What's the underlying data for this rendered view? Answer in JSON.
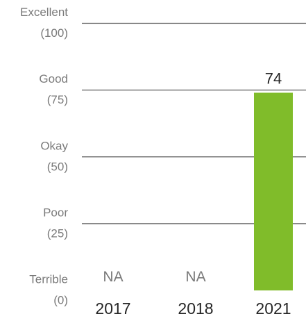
{
  "chart_data": {
    "type": "bar",
    "categories": [
      "2017",
      "2018",
      "2021"
    ],
    "values": [
      null,
      null,
      74
    ],
    "value_labels": [
      "NA",
      "NA",
      "74"
    ],
    "ylim": [
      0,
      100
    ],
    "yticks": [
      {
        "value": 100,
        "label": "Excellent",
        "sublabel": "(100)"
      },
      {
        "value": 75,
        "label": "Good",
        "sublabel": "(75)"
      },
      {
        "value": 50,
        "label": "Okay",
        "sublabel": "(50)"
      },
      {
        "value": 25,
        "label": "Poor",
        "sublabel": "(25)"
      },
      {
        "value": 0,
        "label": "Terrible",
        "sublabel": "(0)"
      }
    ],
    "grid": true,
    "bar_color": "#80bc2a",
    "title": "",
    "xlabel": "",
    "ylabel": ""
  }
}
